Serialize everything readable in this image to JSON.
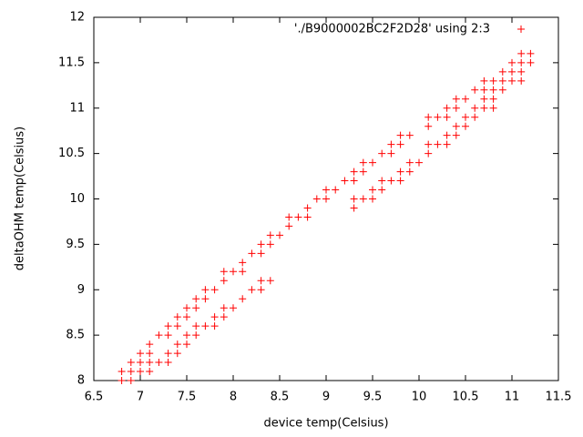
{
  "chart_data": {
    "type": "scatter",
    "xlabel": "device temp(Celsius)",
    "ylabel": "deltaOHM temp(Celsius)",
    "xlim": [
      6.5,
      11.5
    ],
    "xticks": [
      6.5,
      7,
      7.5,
      8,
      8.5,
      9,
      9.5,
      10,
      10.5,
      11,
      11.5
    ],
    "ylim": [
      8,
      12
    ],
    "yticks": [
      8,
      8.5,
      9,
      9.5,
      10,
      10.5,
      11,
      11.5,
      12
    ],
    "legend": "top-right",
    "x": [
      6.8,
      6.8,
      6.9,
      6.9,
      6.9,
      7.0,
      7.0,
      7.0,
      7.1,
      7.1,
      7.1,
      7.1,
      7.2,
      7.2,
      7.3,
      7.3,
      7.3,
      7.3,
      7.4,
      7.4,
      7.4,
      7.4,
      7.5,
      7.5,
      7.5,
      7.5,
      7.6,
      7.6,
      7.6,
      7.6,
      7.7,
      7.7,
      7.7,
      7.8,
      7.8,
      7.8,
      7.9,
      7.9,
      7.9,
      7.9,
      8.0,
      8.0,
      8.1,
      8.1,
      8.1,
      8.2,
      8.2,
      8.3,
      8.3,
      8.3,
      8.3,
      8.4,
      8.4,
      8.4,
      8.5,
      8.6,
      8.6,
      8.7,
      8.8,
      8.8,
      8.9,
      9.0,
      9.0,
      9.1,
      9.2,
      9.3,
      9.3,
      9.3,
      9.3,
      9.4,
      9.4,
      9.4,
      9.5,
      9.5,
      9.5,
      9.6,
      9.6,
      9.6,
      9.7,
      9.7,
      9.7,
      9.8,
      9.8,
      9.8,
      9.8,
      9.9,
      9.9,
      9.9,
      10.0,
      10.1,
      10.1,
      10.1,
      10.1,
      10.2,
      10.2,
      10.3,
      10.3,
      10.3,
      10.3,
      10.4,
      10.4,
      10.4,
      10.4,
      10.5,
      10.5,
      10.5,
      10.6,
      10.6,
      10.6,
      10.7,
      10.7,
      10.7,
      10.7,
      10.8,
      10.8,
      10.8,
      10.8,
      10.9,
      10.9,
      10.9,
      11.0,
      11.0,
      11.0,
      11.1,
      11.1,
      11.1,
      11.1,
      11.2,
      11.2
    ],
    "series": [
      {
        "name": "'./B9000002BC2F2D28' using 2:3",
        "color": "#ff0000",
        "values": [
          8.1,
          8.0,
          8.2,
          8.1,
          8.0,
          8.3,
          8.2,
          8.1,
          8.4,
          8.3,
          8.2,
          8.1,
          8.5,
          8.2,
          8.6,
          8.5,
          8.3,
          8.2,
          8.7,
          8.6,
          8.4,
          8.3,
          8.8,
          8.7,
          8.5,
          8.4,
          8.9,
          8.8,
          8.6,
          8.5,
          9.0,
          8.9,
          8.6,
          9.0,
          8.7,
          8.6,
          9.2,
          9.1,
          8.8,
          8.7,
          9.2,
          8.8,
          9.3,
          9.2,
          8.9,
          9.4,
          9.0,
          9.5,
          9.4,
          9.1,
          9.0,
          9.6,
          9.5,
          9.1,
          9.6,
          9.8,
          9.7,
          9.8,
          9.9,
          9.8,
          10.0,
          10.1,
          10.0,
          10.1,
          10.2,
          10.3,
          10.2,
          10.0,
          9.9,
          10.4,
          10.3,
          10.0,
          10.4,
          10.1,
          10.0,
          10.5,
          10.2,
          10.1,
          10.6,
          10.5,
          10.2,
          10.7,
          10.6,
          10.3,
          10.2,
          10.7,
          10.4,
          10.3,
          10.4,
          10.9,
          10.8,
          10.6,
          10.5,
          10.9,
          10.6,
          11.0,
          10.9,
          10.7,
          10.6,
          11.1,
          11.0,
          10.8,
          10.7,
          11.1,
          10.9,
          10.8,
          11.2,
          11.0,
          10.9,
          11.3,
          11.2,
          11.1,
          11.0,
          11.3,
          11.2,
          11.1,
          11.0,
          11.4,
          11.3,
          11.2,
          11.5,
          11.4,
          11.3,
          11.6,
          11.5,
          11.4,
          11.3,
          11.6,
          11.5
        ]
      }
    ]
  }
}
